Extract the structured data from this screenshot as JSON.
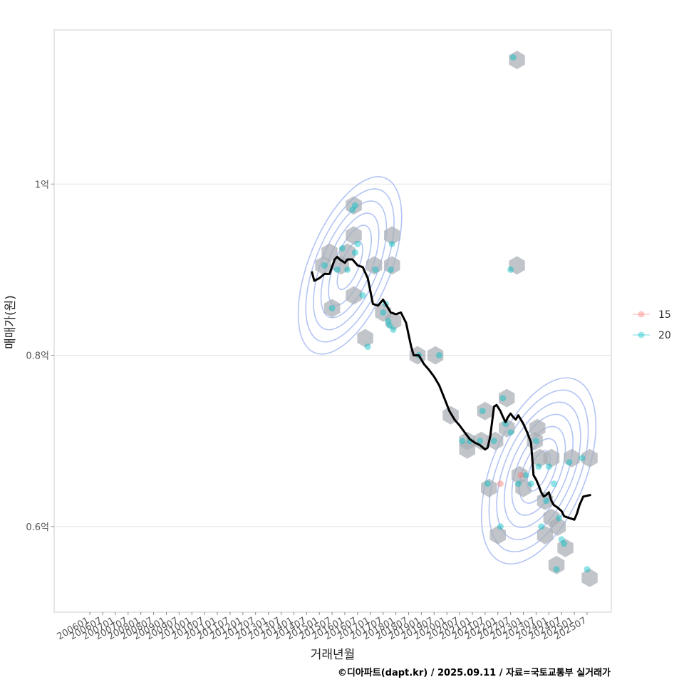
{
  "chart_data": {
    "type": "scatter",
    "xlabel": "거래년월",
    "ylabel": "매매가(원)",
    "caption": "©디아파트(dapt.kr) / 2025.09.11 / 자료=국토교통부 실거래가",
    "x_tick_labels": [
      "200601",
      "200607",
      "200701",
      "200707",
      "200801",
      "200807",
      "200901",
      "200907",
      "201001",
      "201007",
      "201101",
      "201107",
      "201201",
      "201207",
      "201301",
      "201307",
      "201401",
      "201407",
      "201501",
      "201507",
      "201601",
      "201607",
      "201701",
      "201707",
      "201801",
      "201807",
      "201901",
      "201907",
      "202001",
      "202007",
      "202101",
      "202107",
      "202201",
      "202207",
      "202301",
      "202307",
      "202401",
      "202407",
      "202501",
      "202507"
    ],
    "xlim": [
      2004.6,
      2026.45
    ],
    "ylim": [
      0.5,
      1.18
    ],
    "y_ticks": [
      {
        "value": 0.6,
        "label": "0.6억"
      },
      {
        "value": 0.8,
        "label": "0.8억"
      },
      {
        "value": 1.0,
        "label": "1억"
      }
    ],
    "legend": {
      "position": "right",
      "items": [
        {
          "label": "15",
          "color": "#F8766D"
        },
        {
          "label": "20",
          "color": "#00BFC4"
        }
      ]
    },
    "colors": {
      "hexbin": "#a9aeb6",
      "contour": "#a7baf2",
      "trend": "#000000",
      "panel_border": "#cccccc",
      "grid": "#e3e3e3"
    },
    "series": [
      {
        "name": "20",
        "color": "#00BFC4",
        "points": [
          [
            2015.2,
            0.905
          ],
          [
            2015.5,
            0.855
          ],
          [
            2015.7,
            0.9
          ],
          [
            2015.9,
            0.925
          ],
          [
            2016.1,
            0.9
          ],
          [
            2016.4,
            0.92
          ],
          [
            2016.5,
            0.93
          ],
          [
            2016.3,
            0.97
          ],
          [
            2016.4,
            0.975
          ],
          [
            2016.7,
            0.87
          ],
          [
            2016.9,
            0.81
          ],
          [
            2017.2,
            0.9
          ],
          [
            2017.5,
            0.85
          ],
          [
            2017.6,
            0.86
          ],
          [
            2017.7,
            0.84
          ],
          [
            2017.75,
            0.835
          ],
          [
            2017.8,
            0.9
          ],
          [
            2017.85,
            0.93
          ],
          [
            2017.9,
            0.83
          ],
          [
            2018.9,
            0.8
          ],
          [
            2019.7,
            0.8
          ],
          [
            2020.6,
            0.7
          ],
          [
            2020.9,
            0.7
          ],
          [
            2021.3,
            0.7
          ],
          [
            2021.4,
            0.735
          ],
          [
            2021.6,
            0.65
          ],
          [
            2021.85,
            0.7
          ],
          [
            2022.1,
            0.6
          ],
          [
            2022.2,
            0.75
          ],
          [
            2022.3,
            0.72
          ],
          [
            2022.5,
            0.71
          ],
          [
            2022.6,
            1.148
          ],
          [
            2022.5,
            0.9
          ],
          [
            2022.8,
            0.65
          ],
          [
            2023.1,
            0.66
          ],
          [
            2023.3,
            0.65
          ],
          [
            2023.5,
            0.7
          ],
          [
            2023.6,
            0.67
          ],
          [
            2023.7,
            0.6
          ],
          [
            2023.9,
            0.63
          ],
          [
            2024.0,
            0.67
          ],
          [
            2024.2,
            0.65
          ],
          [
            2024.3,
            0.55
          ],
          [
            2024.4,
            0.61
          ],
          [
            2024.5,
            0.585
          ],
          [
            2024.6,
            0.58
          ],
          [
            2024.8,
            0.675
          ],
          [
            2025.3,
            0.68
          ],
          [
            2025.5,
            0.55
          ]
        ]
      },
      {
        "name": "15",
        "color": "#F8766D",
        "points": [
          [
            2022.1,
            0.65
          ],
          [
            2022.9,
            0.66
          ]
        ]
      }
    ],
    "hexbins": [
      [
        2015.15,
        0.905
      ],
      [
        2015.4,
        0.92
      ],
      [
        2015.5,
        0.855
      ],
      [
        2015.85,
        0.905
      ],
      [
        2016.1,
        0.92
      ],
      [
        2016.35,
        0.975
      ],
      [
        2016.35,
        0.94
      ],
      [
        2016.35,
        0.87
      ],
      [
        2016.8,
        0.82
      ],
      [
        2017.15,
        0.905
      ],
      [
        2017.85,
        0.94
      ],
      [
        2017.85,
        0.905
      ],
      [
        2017.5,
        0.85
      ],
      [
        2017.9,
        0.84
      ],
      [
        2018.85,
        0.8
      ],
      [
        2019.55,
        0.8
      ],
      [
        2020.15,
        0.73
      ],
      [
        2020.8,
        0.7
      ],
      [
        2020.8,
        0.69
      ],
      [
        2021.35,
        0.7
      ],
      [
        2021.5,
        0.735
      ],
      [
        2021.65,
        0.645
      ],
      [
        2021.9,
        0.7
      ],
      [
        2022.0,
        0.59
      ],
      [
        2022.35,
        0.75
      ],
      [
        2022.35,
        0.715
      ],
      [
        2022.75,
        1.145
      ],
      [
        2022.75,
        0.905
      ],
      [
        2022.85,
        0.66
      ],
      [
        2023.0,
        0.645
      ],
      [
        2023.45,
        0.7
      ],
      [
        2023.55,
        0.715
      ],
      [
        2023.65,
        0.68
      ],
      [
        2023.85,
        0.63
      ],
      [
        2023.85,
        0.59
      ],
      [
        2024.1,
        0.68
      ],
      [
        2024.1,
        0.61
      ],
      [
        2024.35,
        0.6
      ],
      [
        2024.3,
        0.555
      ],
      [
        2024.65,
        0.575
      ],
      [
        2024.9,
        0.68
      ],
      [
        2025.6,
        0.68
      ],
      [
        2025.6,
        0.54
      ]
    ],
    "trend": {
      "x": [
        2014.7,
        2014.8,
        2015.0,
        2015.2,
        2015.4,
        2015.6,
        2015.7,
        2015.8,
        2016.0,
        2016.1,
        2016.3,
        2016.5,
        2016.7,
        2016.9,
        2017.0,
        2017.1,
        2017.3,
        2017.5,
        2017.7,
        2017.8,
        2018.0,
        2018.2,
        2018.4,
        2018.6,
        2018.7,
        2018.9,
        2019.1,
        2019.3,
        2019.5,
        2019.7,
        2019.9,
        2020.1,
        2020.3,
        2020.5,
        2020.7,
        2020.9,
        2021.1,
        2021.3,
        2021.5,
        2021.6,
        2021.7,
        2021.85,
        2021.95,
        2022.1,
        2022.2,
        2022.3,
        2022.4,
        2022.5,
        2022.6,
        2022.7,
        2022.8,
        2023.0,
        2023.15,
        2023.3,
        2023.4,
        2023.5,
        2023.6,
        2023.7,
        2023.8,
        2023.9,
        2024.0,
        2024.1,
        2024.2,
        2024.35,
        2024.5,
        2024.6,
        2024.8,
        2025.0,
        2025.1,
        2025.2,
        2025.35,
        2025.5,
        2025.65
      ],
      "y": [
        0.898,
        0.887,
        0.89,
        0.895,
        0.895,
        0.912,
        0.915,
        0.912,
        0.908,
        0.912,
        0.912,
        0.905,
        0.903,
        0.89,
        0.875,
        0.86,
        0.858,
        0.865,
        0.855,
        0.85,
        0.848,
        0.85,
        0.838,
        0.81,
        0.8,
        0.8,
        0.79,
        0.783,
        0.775,
        0.765,
        0.75,
        0.735,
        0.725,
        0.718,
        0.71,
        0.702,
        0.698,
        0.695,
        0.69,
        0.692,
        0.705,
        0.74,
        0.742,
        0.735,
        0.728,
        0.722,
        0.728,
        0.732,
        0.728,
        0.725,
        0.73,
        0.72,
        0.71,
        0.698,
        0.66,
        0.655,
        0.648,
        0.64,
        0.635,
        0.637,
        0.64,
        0.63,
        0.625,
        0.622,
        0.618,
        0.612,
        0.61,
        0.608,
        0.615,
        0.625,
        0.635,
        0.636,
        0.637
      ]
    },
    "contours": [
      {
        "center": [
          2016.2,
          0.905
        ],
        "rx": [
          0.35,
          0.6,
          0.85,
          1.1,
          1.35,
          1.6
        ],
        "ry": [
          0.03,
          0.05,
          0.065,
          0.08,
          0.095,
          0.11
        ]
      },
      {
        "center": [
          2023.6,
          0.665
        ],
        "rx": [
          0.35,
          0.6,
          0.85,
          1.1,
          1.35,
          1.6,
          1.85
        ],
        "ry": [
          0.025,
          0.04,
          0.055,
          0.07,
          0.085,
          0.1,
          0.115
        ]
      }
    ]
  }
}
